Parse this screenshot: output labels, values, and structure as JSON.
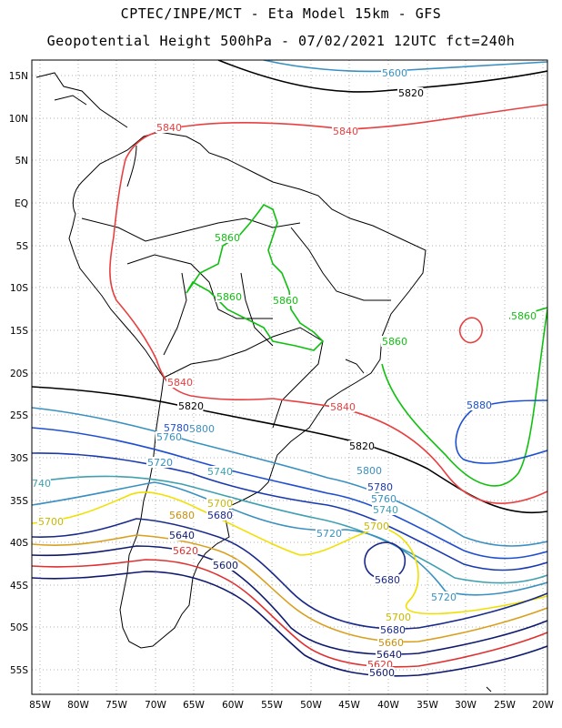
{
  "title_line1": "CPTEC/INPE/MCT -  Eta Model 15km - GFS",
  "title_line2": "Geopotential Height 500hPa - 07/02/2021 12UTC fct=240h",
  "lat_labels": [
    "15N",
    "10N",
    "5N",
    "EQ",
    "5S",
    "10S",
    "15S",
    "20S",
    "25S",
    "30S",
    "35S",
    "40S",
    "45S",
    "50S",
    "55S"
  ],
  "lon_labels": [
    "85W",
    "80W",
    "75W",
    "70W",
    "65W",
    "60W",
    "55W",
    "50W",
    "45W",
    "40W",
    "35W",
    "30W",
    "25W",
    "20W"
  ],
  "contour_colors": {
    "5600": "#0f1a6e",
    "5620": "#e03030",
    "5640": "#0f1a6e",
    "5660": "#1a2a8a",
    "5680": "#d9a020",
    "5700": "#f0e000",
    "5720": "#3a8fc0",
    "5740": "#40a0b0",
    "5760": "#1a3ab0",
    "5780": "#2050d0",
    "5800": "#3a90c0",
    "5820": "#000000",
    "5840": "#e84040",
    "5860": "#10c010"
  },
  "contour_labels": [
    {
      "text": "5600",
      "color": "#3a90c0"
    },
    {
      "text": "5820",
      "color": "#000000"
    },
    {
      "text": "5840",
      "color": "#e84040"
    },
    {
      "text": "5840",
      "color": "#e84040"
    },
    {
      "text": "5860",
      "color": "#10c010"
    },
    {
      "text": "5860",
      "color": "#10c010"
    },
    {
      "text": "5860",
      "color": "#10c010"
    },
    {
      "text": "5860",
      "color": "#10c010"
    },
    {
      "text": "5860",
      "color": "#10c010"
    },
    {
      "text": "5840",
      "color": "#e84040"
    },
    {
      "text": "5820",
      "color": "#000000"
    },
    {
      "text": "5840",
      "color": "#e84040"
    },
    {
      "text": "5880",
      "color": "#1a50d0"
    },
    {
      "text": "5780",
      "color": "#2050d0"
    },
    {
      "text": "5800",
      "color": "#3a90c0"
    },
    {
      "text": "5760",
      "color": "#3a90c0"
    },
    {
      "text": "5820",
      "color": "#000000"
    },
    {
      "text": "5720",
      "color": "#3a90c0"
    },
    {
      "text": "5740",
      "color": "#40a0b0"
    },
    {
      "text": "5800",
      "color": "#3a90c0"
    },
    {
      "text": "5780",
      "color": "#1a3ab0"
    },
    {
      "text": "5760",
      "color": "#3a90c0"
    },
    {
      "text": "5740",
      "color": "#40a0b0"
    },
    {
      "text": "740",
      "color": "#40a0b0"
    },
    {
      "text": "5700",
      "color": "#c8b800"
    },
    {
      "text": "5700",
      "color": "#c8b800"
    },
    {
      "text": "5680",
      "color": "#1a2a8a"
    },
    {
      "text": "5680",
      "color": "#c89010"
    },
    {
      "text": "5720",
      "color": "#3a90c0"
    },
    {
      "text": "5700",
      "color": "#c8b800"
    },
    {
      "text": "5640",
      "color": "#0f1a6e"
    },
    {
      "text": "5620",
      "color": "#e03030"
    },
    {
      "text": "5600",
      "color": "#0f1a6e"
    },
    {
      "text": "5680",
      "color": "#1a2a8a"
    },
    {
      "text": "5720",
      "color": "#3a90c0"
    },
    {
      "text": "5700",
      "color": "#c8b800"
    },
    {
      "text": "5680",
      "color": "#1a2a8a"
    },
    {
      "text": "5660",
      "color": "#c89010"
    },
    {
      "text": "5640",
      "color": "#0f1a6e"
    },
    {
      "text": "5620",
      "color": "#e03030"
    },
    {
      "text": "5600",
      "color": "#0f1a6e"
    }
  ]
}
